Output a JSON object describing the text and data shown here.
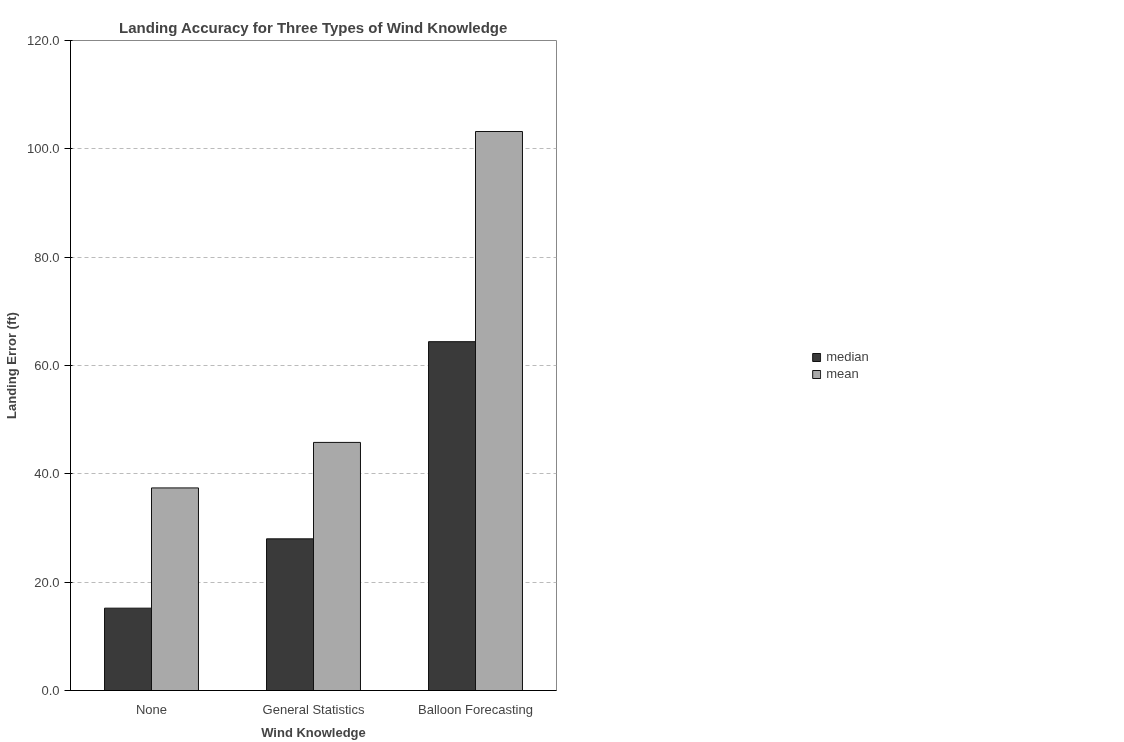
{
  "chart_data": {
    "type": "bar",
    "title": "Landing Accuracy for Three Types of Wind Knowledge",
    "xlabel": "Wind Knowledge",
    "ylabel": "Landing Error (ft)",
    "categories": [
      "None",
      "General Statistics",
      "Balloon Forecasting"
    ],
    "series": [
      {
        "name": "median",
        "color": "#3a3a3a",
        "values": [
          15.2,
          28.0,
          64.4
        ]
      },
      {
        "name": "mean",
        "color": "#a9a9a9",
        "values": [
          37.4,
          45.8,
          103.2
        ]
      }
    ],
    "ylim": [
      0,
      120
    ],
    "yticks": [
      {
        "value": 0,
        "label": "0.0"
      },
      {
        "value": 20,
        "label": "20.0"
      },
      {
        "value": 40,
        "label": "40.0"
      },
      {
        "value": 60,
        "label": "60.0"
      },
      {
        "value": 80,
        "label": "80.0"
      },
      {
        "value": 100,
        "label": "100.0"
      },
      {
        "value": 120,
        "label": "120.0"
      }
    ],
    "grid": "y",
    "legend": "right"
  }
}
